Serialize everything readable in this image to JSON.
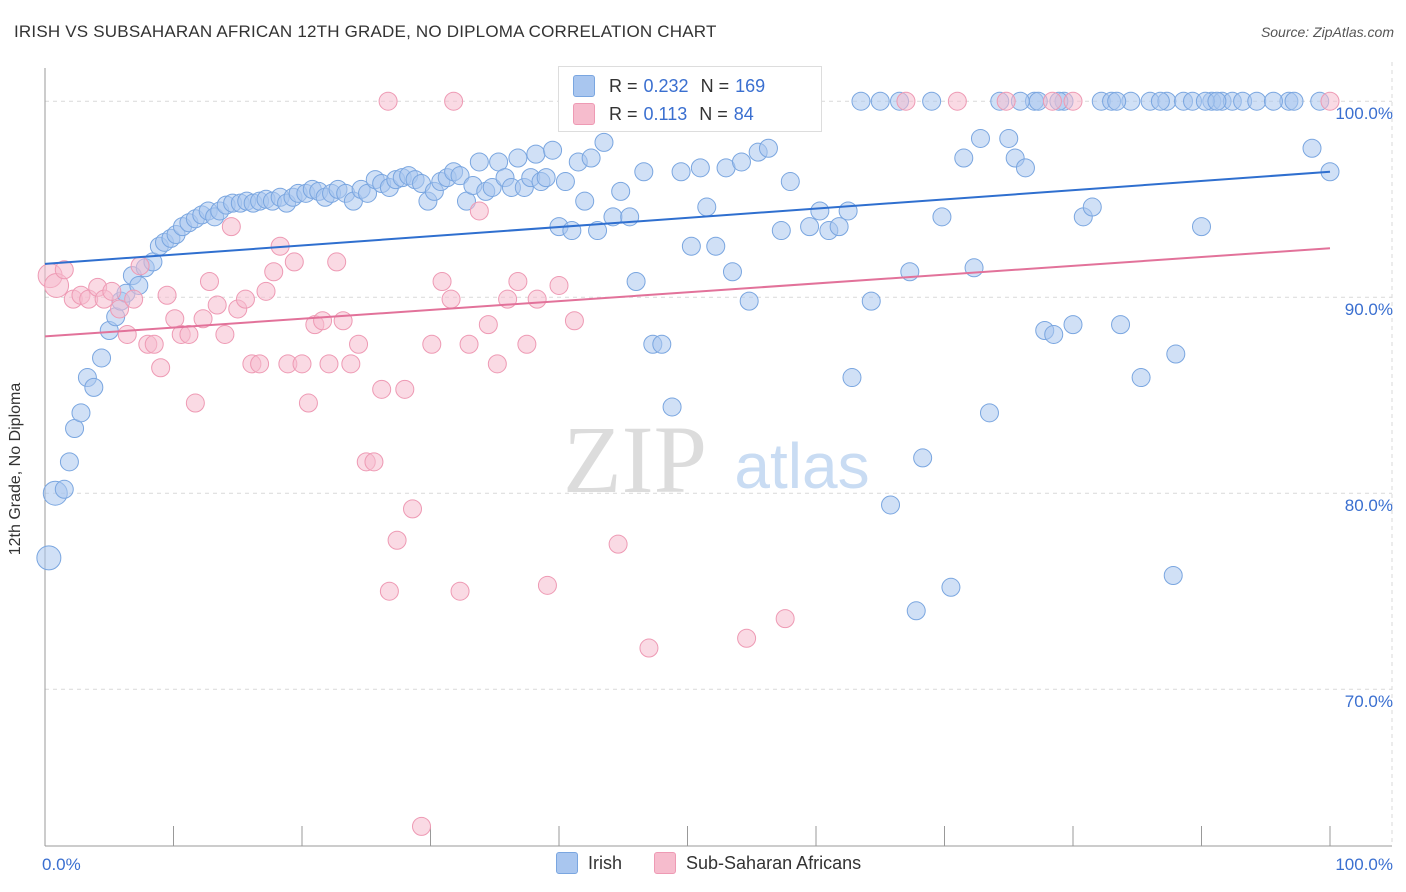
{
  "title": "IRISH VS SUBSAHARAN AFRICAN 12TH GRADE, NO DIPLOMA CORRELATION CHART",
  "source": "Source: ZipAtlas.com",
  "watermark": {
    "zip": "ZIP",
    "atlas": "atlas"
  },
  "legend": {
    "irish": {
      "r_label": "R =",
      "r_value": "0.232",
      "n_label": "N =",
      "n_value": "169"
    },
    "africans": {
      "r_label": "R =",
      "r_value": "0.113",
      "n_label": "N =",
      "n_value": "84"
    }
  },
  "bottom_legend": {
    "irish": "Irish",
    "africans": "Sub-Saharan Africans"
  },
  "colors": {
    "irish_fill": "#a9c6ef",
    "irish_stroke": "#7aa6e0",
    "irish_line": "#2f6fcf",
    "africans_fill": "#f6bccd",
    "africans_stroke": "#ee9ab4",
    "africans_line": "#e2729a",
    "grid": "#d9d9d9",
    "tick_label": "#3a6fd0",
    "axis": "#999999"
  },
  "chart_data": {
    "type": "scatter",
    "title": "IRISH VS SUBSAHARAN AFRICAN 12TH GRADE, NO DIPLOMA CORRELATION CHART",
    "xlabel": "",
    "ylabel": "12th Grade, No Diploma",
    "xlim": [
      0,
      100
    ],
    "ylim": [
      62.0,
      102.0
    ],
    "x_tick_labels": [
      "0.0%",
      "100.0%"
    ],
    "y_ticks": [
      100,
      90,
      80,
      70
    ],
    "y_tick_labels": [
      "100.0%",
      "90.0%",
      "80.0%",
      "70.0%"
    ],
    "grid": true,
    "legend_position": "top-center",
    "series": [
      {
        "name": "Irish",
        "r": 0.232,
        "n": 169,
        "trend": [
          [
            0,
            91.7
          ],
          [
            100,
            96.4
          ]
        ],
        "points": [
          [
            0.3,
            76.7
          ],
          [
            0.8,
            80.0
          ],
          [
            1.5,
            80.2
          ],
          [
            1.9,
            81.6
          ],
          [
            2.3,
            83.3
          ],
          [
            2.8,
            84.1
          ],
          [
            3.3,
            85.9
          ],
          [
            3.8,
            85.4
          ],
          [
            4.4,
            86.9
          ],
          [
            5.0,
            88.3
          ],
          [
            5.5,
            89.0
          ],
          [
            5.9,
            89.8
          ],
          [
            6.3,
            90.2
          ],
          [
            6.8,
            91.1
          ],
          [
            7.3,
            90.6
          ],
          [
            7.8,
            91.5
          ],
          [
            8.4,
            91.8
          ],
          [
            8.9,
            92.6
          ],
          [
            9.3,
            92.8
          ],
          [
            9.8,
            93.0
          ],
          [
            10.2,
            93.2
          ],
          [
            10.7,
            93.6
          ],
          [
            11.2,
            93.8
          ],
          [
            11.7,
            94.0
          ],
          [
            12.2,
            94.2
          ],
          [
            12.7,
            94.4
          ],
          [
            13.2,
            94.1
          ],
          [
            13.6,
            94.4
          ],
          [
            14.1,
            94.7
          ],
          [
            14.6,
            94.8
          ],
          [
            15.2,
            94.8
          ],
          [
            15.7,
            94.9
          ],
          [
            16.2,
            94.8
          ],
          [
            16.7,
            94.9
          ],
          [
            17.2,
            95.0
          ],
          [
            17.7,
            94.9
          ],
          [
            18.3,
            95.1
          ],
          [
            18.8,
            94.8
          ],
          [
            19.3,
            95.1
          ],
          [
            19.7,
            95.3
          ],
          [
            20.3,
            95.3
          ],
          [
            20.8,
            95.5
          ],
          [
            21.3,
            95.4
          ],
          [
            21.8,
            95.1
          ],
          [
            22.3,
            95.3
          ],
          [
            22.8,
            95.5
          ],
          [
            23.4,
            95.3
          ],
          [
            24.0,
            94.9
          ],
          [
            24.6,
            95.5
          ],
          [
            25.1,
            95.3
          ],
          [
            25.7,
            96.0
          ],
          [
            26.2,
            95.8
          ],
          [
            26.8,
            95.6
          ],
          [
            27.3,
            96.0
          ],
          [
            27.8,
            96.1
          ],
          [
            28.3,
            96.2
          ],
          [
            28.8,
            96.0
          ],
          [
            29.3,
            95.8
          ],
          [
            29.8,
            94.9
          ],
          [
            30.3,
            95.4
          ],
          [
            30.8,
            95.9
          ],
          [
            31.3,
            96.1
          ],
          [
            31.8,
            96.4
          ],
          [
            32.3,
            96.2
          ],
          [
            32.8,
            94.9
          ],
          [
            33.3,
            95.7
          ],
          [
            33.8,
            96.9
          ],
          [
            34.3,
            95.4
          ],
          [
            34.8,
            95.6
          ],
          [
            35.3,
            96.9
          ],
          [
            35.8,
            96.1
          ],
          [
            36.3,
            95.6
          ],
          [
            36.8,
            97.1
          ],
          [
            37.3,
            95.6
          ],
          [
            37.8,
            96.1
          ],
          [
            38.2,
            97.3
          ],
          [
            38.6,
            95.9
          ],
          [
            39.0,
            96.1
          ],
          [
            39.5,
            97.5
          ],
          [
            40.0,
            93.6
          ],
          [
            40.5,
            95.9
          ],
          [
            41.0,
            93.4
          ],
          [
            41.5,
            96.9
          ],
          [
            42.0,
            94.9
          ],
          [
            42.5,
            97.1
          ],
          [
            43.0,
            93.4
          ],
          [
            43.5,
            97.9
          ],
          [
            44.2,
            94.1
          ],
          [
            44.8,
            95.4
          ],
          [
            45.5,
            94.1
          ],
          [
            46.0,
            90.8
          ],
          [
            46.6,
            96.4
          ],
          [
            47.3,
            87.6
          ],
          [
            48.0,
            87.6
          ],
          [
            48.8,
            84.4
          ],
          [
            49.5,
            96.4
          ],
          [
            50.3,
            92.6
          ],
          [
            51.0,
            96.6
          ],
          [
            51.5,
            94.6
          ],
          [
            52.2,
            92.6
          ],
          [
            53.0,
            96.6
          ],
          [
            53.5,
            91.3
          ],
          [
            54.2,
            96.9
          ],
          [
            54.8,
            89.8
          ],
          [
            55.5,
            97.4
          ],
          [
            56.3,
            97.6
          ],
          [
            57.3,
            93.4
          ],
          [
            58.0,
            95.9
          ],
          [
            58.5,
            100.0
          ],
          [
            59.5,
            93.6
          ],
          [
            60.3,
            94.4
          ],
          [
            61.0,
            93.4
          ],
          [
            61.8,
            93.6
          ],
          [
            62.5,
            94.4
          ],
          [
            62.8,
            85.9
          ],
          [
            63.5,
            100.0
          ],
          [
            64.3,
            89.8
          ],
          [
            65.0,
            100.0
          ],
          [
            65.8,
            79.4
          ],
          [
            66.5,
            100.0
          ],
          [
            67.3,
            91.3
          ],
          [
            67.8,
            74.0
          ],
          [
            68.3,
            81.8
          ],
          [
            69.0,
            100.0
          ],
          [
            69.8,
            94.1
          ],
          [
            70.5,
            75.2
          ],
          [
            71.5,
            97.1
          ],
          [
            72.3,
            91.5
          ],
          [
            72.8,
            98.1
          ],
          [
            73.5,
            84.1
          ],
          [
            74.3,
            100.0
          ],
          [
            75.0,
            98.1
          ],
          [
            75.5,
            97.1
          ],
          [
            76.3,
            96.6
          ],
          [
            77.0,
            100.0
          ],
          [
            77.8,
            88.3
          ],
          [
            78.5,
            88.1
          ],
          [
            79.3,
            100.0
          ],
          [
            80.0,
            88.6
          ],
          [
            80.8,
            94.1
          ],
          [
            81.5,
            94.6
          ],
          [
            82.2,
            100.0
          ],
          [
            83.0,
            100.0
          ],
          [
            83.7,
            88.6
          ],
          [
            84.5,
            100.0
          ],
          [
            85.3,
            85.9
          ],
          [
            86.0,
            100.0
          ],
          [
            87.3,
            100.0
          ],
          [
            88.0,
            87.1
          ],
          [
            88.6,
            100.0
          ],
          [
            89.3,
            100.0
          ],
          [
            90.0,
            93.6
          ],
          [
            90.8,
            100.0
          ],
          [
            91.6,
            100.0
          ],
          [
            92.4,
            100.0
          ],
          [
            93.2,
            100.0
          ],
          [
            94.3,
            100.0
          ],
          [
            96.8,
            100.0
          ],
          [
            99.2,
            100.0
          ],
          [
            95.6,
            100.0
          ],
          [
            98.6,
            97.6
          ],
          [
            100.0,
            96.4
          ],
          [
            77.3,
            100.0
          ],
          [
            86.8,
            100.0
          ],
          [
            90.3,
            100.0
          ],
          [
            83.4,
            100.0
          ],
          [
            87.8,
            75.8
          ],
          [
            78.9,
            100.0
          ],
          [
            75.9,
            100.0
          ],
          [
            97.2,
            100.0
          ],
          [
            91.2,
            100.0
          ]
        ]
      },
      {
        "name": "Sub-Saharan Africans",
        "r": 0.113,
        "n": 84,
        "trend": [
          [
            0,
            88.0
          ],
          [
            100,
            92.5
          ]
        ],
        "points": [
          [
            0.4,
            91.1
          ],
          [
            0.9,
            90.6
          ],
          [
            1.5,
            91.4
          ],
          [
            2.2,
            89.9
          ],
          [
            2.8,
            90.1
          ],
          [
            3.4,
            89.9
          ],
          [
            4.1,
            90.5
          ],
          [
            4.6,
            89.9
          ],
          [
            5.2,
            90.3
          ],
          [
            5.8,
            89.4
          ],
          [
            6.4,
            88.1
          ],
          [
            6.9,
            89.9
          ],
          [
            7.4,
            91.6
          ],
          [
            8.0,
            87.6
          ],
          [
            8.5,
            87.6
          ],
          [
            9.0,
            86.4
          ],
          [
            9.5,
            90.1
          ],
          [
            10.1,
            88.9
          ],
          [
            10.6,
            88.1
          ],
          [
            11.2,
            88.1
          ],
          [
            11.7,
            84.6
          ],
          [
            12.3,
            88.9
          ],
          [
            12.8,
            90.8
          ],
          [
            13.4,
            89.6
          ],
          [
            14.0,
            88.1
          ],
          [
            14.5,
            93.6
          ],
          [
            15.0,
            89.4
          ],
          [
            15.6,
            89.9
          ],
          [
            16.1,
            86.6
          ],
          [
            16.7,
            86.6
          ],
          [
            17.2,
            90.3
          ],
          [
            17.8,
            91.3
          ],
          [
            18.3,
            92.6
          ],
          [
            18.9,
            86.6
          ],
          [
            19.4,
            91.8
          ],
          [
            20.0,
            86.6
          ],
          [
            20.5,
            84.6
          ],
          [
            21.0,
            88.6
          ],
          [
            21.6,
            88.8
          ],
          [
            22.1,
            86.6
          ],
          [
            22.7,
            91.8
          ],
          [
            23.2,
            88.8
          ],
          [
            23.8,
            86.6
          ],
          [
            24.4,
            87.6
          ],
          [
            25.0,
            81.6
          ],
          [
            25.6,
            81.6
          ],
          [
            26.2,
            85.3
          ],
          [
            26.8,
            75.0
          ],
          [
            27.4,
            77.6
          ],
          [
            28.0,
            85.3
          ],
          [
            28.6,
            79.2
          ],
          [
            29.3,
            63.0
          ],
          [
            30.1,
            87.6
          ],
          [
            30.9,
            90.8
          ],
          [
            31.6,
            89.9
          ],
          [
            32.3,
            75.0
          ],
          [
            33.0,
            87.6
          ],
          [
            33.8,
            94.4
          ],
          [
            34.5,
            88.6
          ],
          [
            35.2,
            86.6
          ],
          [
            36.0,
            89.9
          ],
          [
            36.8,
            90.8
          ],
          [
            37.5,
            87.6
          ],
          [
            38.3,
            89.9
          ],
          [
            39.1,
            75.3
          ],
          [
            40.0,
            90.6
          ],
          [
            41.2,
            88.8
          ],
          [
            42.3,
            100.0
          ],
          [
            43.5,
            100.0
          ],
          [
            44.6,
            77.4
          ],
          [
            45.8,
            100.0
          ],
          [
            47.0,
            72.1
          ],
          [
            48.5,
            100.0
          ],
          [
            54.6,
            72.6
          ],
          [
            55.8,
            99.4
          ],
          [
            56.5,
            100.0
          ],
          [
            57.6,
            73.6
          ],
          [
            67.0,
            100.0
          ],
          [
            71.0,
            100.0
          ],
          [
            74.8,
            100.0
          ],
          [
            78.4,
            100.0
          ],
          [
            80.0,
            100.0
          ],
          [
            100.0,
            100.0
          ],
          [
            26.7,
            100.0
          ],
          [
            31.8,
            100.0
          ]
        ]
      }
    ]
  }
}
